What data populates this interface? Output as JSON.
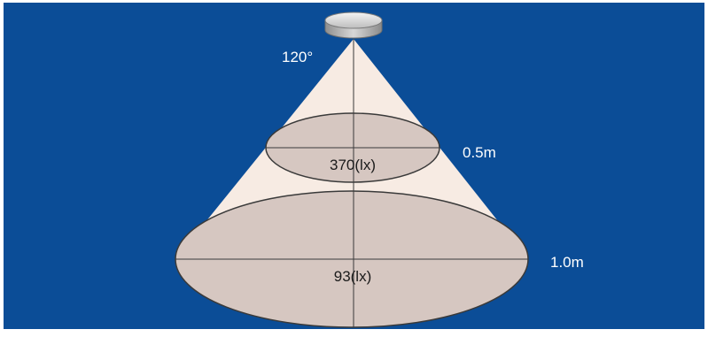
{
  "diagram": {
    "beam_angle": "120°",
    "levels": [
      {
        "distance": "0.5m",
        "illuminance": "370(lx)"
      },
      {
        "distance": "1.0m",
        "illuminance": "93(lx)"
      }
    ]
  },
  "colors": {
    "background": "#0b4d97",
    "frame": "#ffffff",
    "beam": "#f7ebe3",
    "ellipse_fill": "#d6c7c1",
    "ellipse_stroke": "#3a3a3a",
    "label_light": "#ffffff",
    "label_dark": "#1b1b1b"
  }
}
